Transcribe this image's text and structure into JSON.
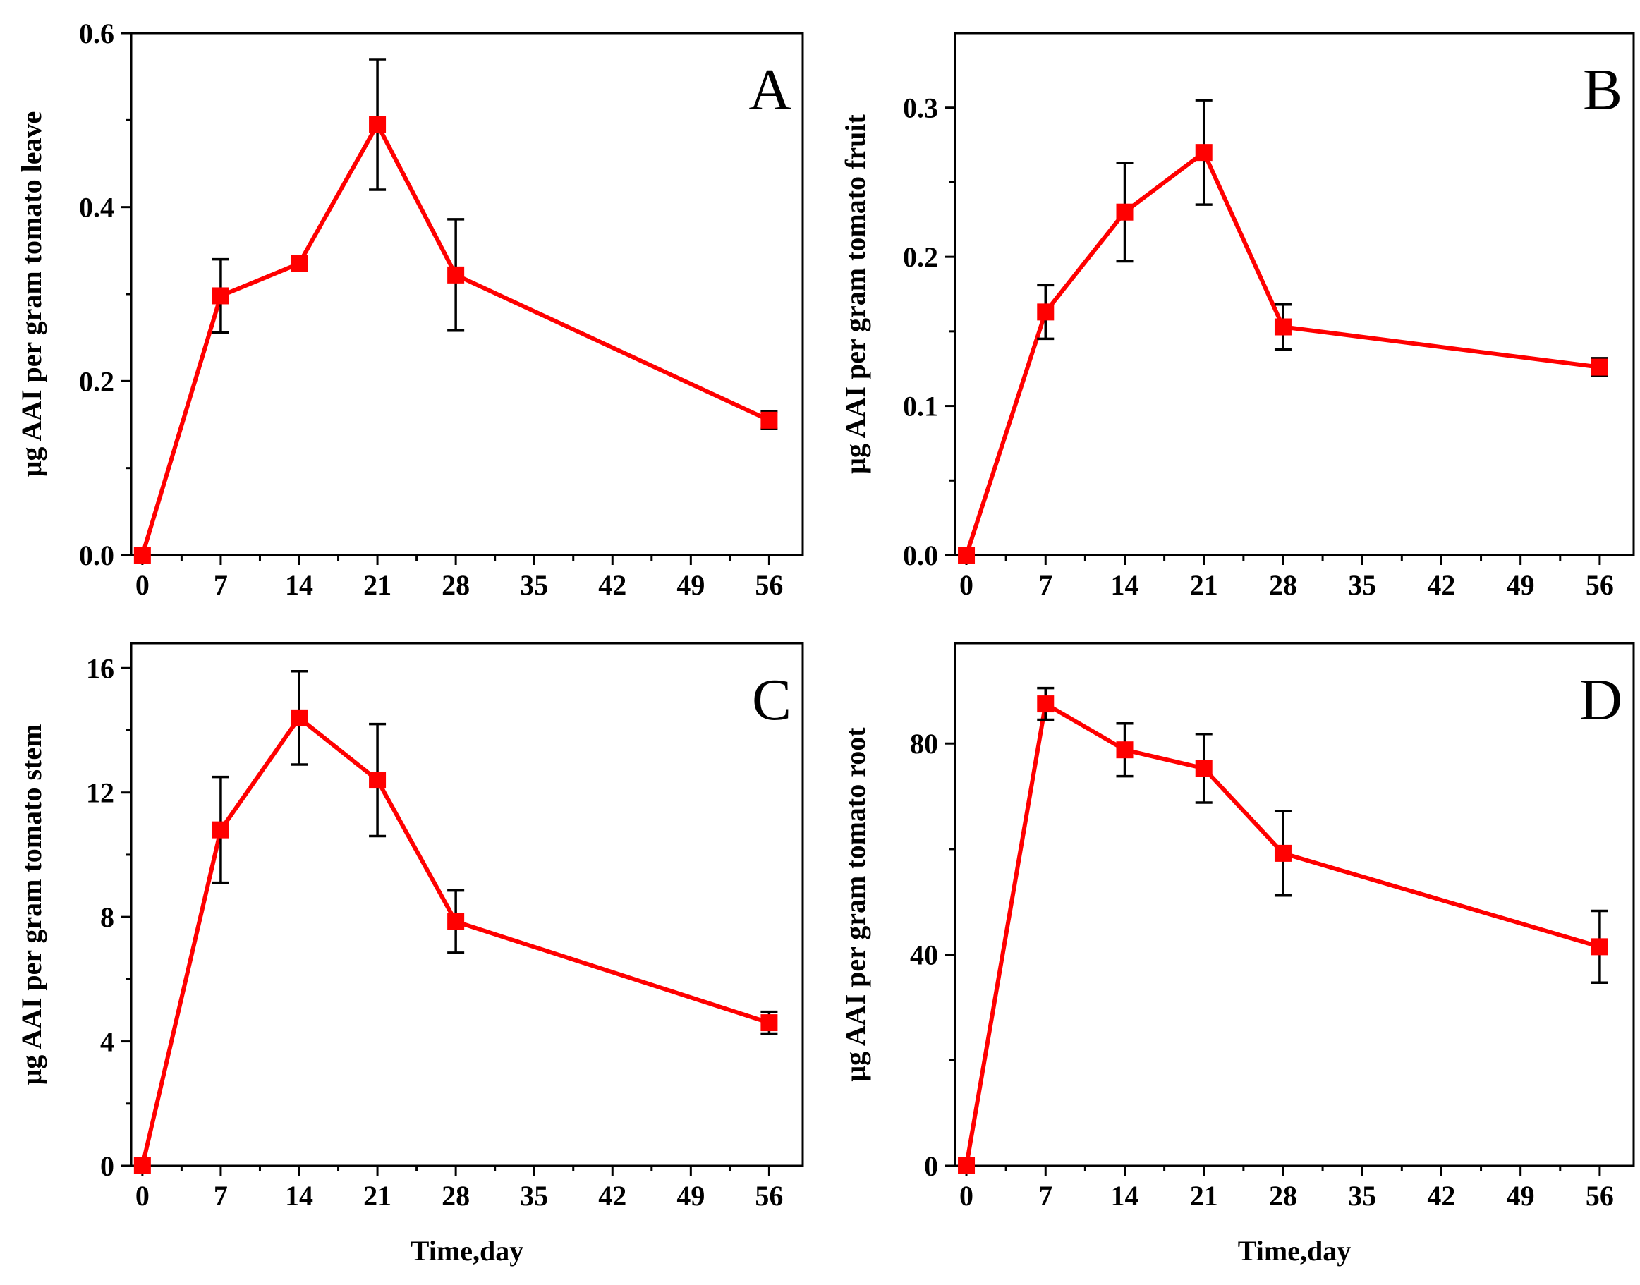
{
  "series_color": "#ff0000",
  "chart_data": [
    {
      "panel": "A",
      "type": "line",
      "xlabel": "",
      "ylabel": "μg AAI per gram tomato leave",
      "x": [
        0,
        7,
        14,
        21,
        28,
        56
      ],
      "y": [
        0.0,
        0.298,
        0.335,
        0.495,
        0.322,
        0.155
      ],
      "yerr": [
        0.0,
        0.042,
        0.007,
        0.075,
        0.064,
        0.01
      ],
      "xlim": [
        -1,
        59
      ],
      "ylim": [
        0,
        0.6
      ],
      "xticks": [
        "0",
        "7",
        "14",
        "21",
        "28",
        "35",
        "42",
        "49",
        "56"
      ],
      "yticks": [
        "0.0",
        "0.2",
        "0.4",
        "0.6"
      ],
      "ytick_values": [
        0,
        0.2,
        0.4,
        0.6
      ],
      "yminor_values": [
        0.1,
        0.3,
        0.5
      ]
    },
    {
      "panel": "B",
      "type": "line",
      "xlabel": "",
      "ylabel": "μg AAI per gram tomato fruit",
      "x": [
        0,
        7,
        14,
        21,
        28,
        56
      ],
      "y": [
        0.0,
        0.163,
        0.23,
        0.27,
        0.153,
        0.126
      ],
      "yerr": [
        0.0,
        0.018,
        0.033,
        0.035,
        0.015,
        0.006
      ],
      "xlim": [
        -1,
        59
      ],
      "ylim": [
        0,
        0.35
      ],
      "xticks": [
        "0",
        "7",
        "14",
        "21",
        "28",
        "35",
        "42",
        "49",
        "56"
      ],
      "yticks": [
        "0.0",
        "0.1",
        "0.2",
        "0.3"
      ],
      "ytick_values": [
        0,
        0.1,
        0.2,
        0.3
      ],
      "yminor_values": [
        0.05,
        0.15,
        0.25
      ]
    },
    {
      "panel": "C",
      "type": "line",
      "xlabel": "Time,day",
      "ylabel": "μg AAI per gram tomato stem",
      "x": [
        0,
        7,
        14,
        21,
        28,
        56
      ],
      "y": [
        0.0,
        10.8,
        14.4,
        12.4,
        7.85,
        4.6
      ],
      "yerr": [
        0.0,
        1.7,
        1.5,
        1.8,
        1.0,
        0.35
      ],
      "xlim": [
        -1,
        59
      ],
      "ylim": [
        0,
        16.8
      ],
      "xticks": [
        "0",
        "7",
        "14",
        "21",
        "28",
        "35",
        "42",
        "49",
        "56"
      ],
      "yticks": [
        "0",
        "4",
        "8",
        "12",
        "16"
      ],
      "ytick_values": [
        0,
        4,
        8,
        12,
        16
      ],
      "yminor_values": [
        2,
        6,
        10,
        14
      ]
    },
    {
      "panel": "D",
      "type": "line",
      "xlabel": "Time,day",
      "ylabel": "μg AAI per gram tomato root",
      "x": [
        0,
        7,
        14,
        21,
        28,
        56
      ],
      "y": [
        0.0,
        87.5,
        78.8,
        75.3,
        59.2,
        41.5
      ],
      "yerr": [
        0.0,
        3.0,
        5.0,
        6.5,
        8.0,
        6.8
      ],
      "xlim": [
        -1,
        59
      ],
      "ylim": [
        0,
        99
      ],
      "xticks": [
        "0",
        "7",
        "14",
        "21",
        "28",
        "35",
        "42",
        "49",
        "56"
      ],
      "yticks": [
        "0",
        "40",
        "80"
      ],
      "ytick_values": [
        0,
        40,
        80
      ],
      "yminor_values": [
        20,
        60
      ]
    }
  ]
}
